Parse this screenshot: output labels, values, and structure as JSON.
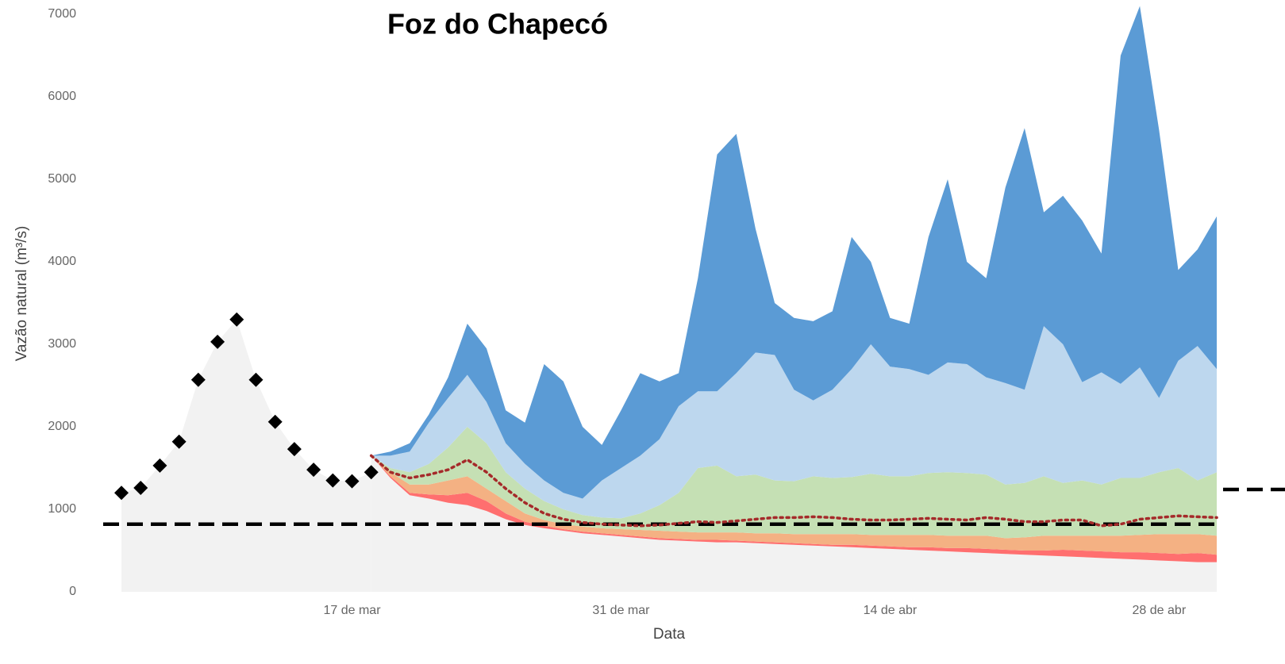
{
  "chart_data": {
    "type": "area",
    "title": "Foz do Chapecó",
    "x_label": "Data",
    "y_label": "Vazão natural (m³/s)",
    "categories": [
      null,
      null,
      null,
      null,
      null,
      null,
      null,
      null,
      null,
      null,
      null,
      null,
      "17 de mar",
      null,
      null,
      null,
      null,
      null,
      null,
      null,
      null,
      null,
      null,
      null,
      null,
      null,
      "31 de mar",
      null,
      null,
      null,
      null,
      null,
      null,
      null,
      null,
      null,
      null,
      null,
      null,
      null,
      "14 de abr",
      null,
      null,
      null,
      null,
      null,
      null,
      null,
      null,
      null,
      null,
      null,
      null,
      null,
      "28 de abr",
      null,
      null,
      null
    ],
    "ylim": [
      0,
      7000
    ],
    "yticks": [
      0,
      1000,
      2000,
      3000,
      4000,
      5000,
      6000,
      7000
    ],
    "reference_lines": [
      820,
      1240
    ],
    "reference_color": "#000000",
    "series": [
      {
        "style": "markers",
        "color": "#000000",
        "fill": "#f2f2f2",
        "values": [
          1200,
          1260,
          1530,
          1820,
          2570,
          3030,
          3300,
          2570,
          2060,
          1730,
          1480,
          1350,
          1340,
          1450,
          null,
          null,
          null,
          null,
          null,
          null,
          null,
          null,
          null,
          null,
          null,
          null,
          null,
          null,
          null,
          null,
          null,
          null,
          null,
          null,
          null,
          null,
          null,
          null,
          null,
          null,
          null,
          null,
          null,
          null,
          null,
          null,
          null,
          null,
          null,
          null,
          null,
          null,
          null,
          null,
          null,
          null,
          null,
          null
        ]
      },
      {
        "style": "band",
        "color": "#f2f2f2",
        "values": [
          null,
          null,
          null,
          null,
          null,
          null,
          null,
          null,
          null,
          null,
          null,
          null,
          null,
          1650,
          1380,
          1170,
          1130,
          1080,
          1050,
          980,
          880,
          810,
          770,
          740,
          710,
          690,
          670,
          650,
          630,
          620,
          610,
          600,
          600,
          590,
          580,
          570,
          560,
          550,
          540,
          530,
          520,
          510,
          500,
          490,
          480,
          470,
          460,
          450,
          440,
          430,
          420,
          410,
          400,
          390,
          380,
          370,
          360,
          360
        ]
      },
      {
        "style": "band",
        "color": "#ff6f6f",
        "values": [
          null,
          null,
          null,
          null,
          null,
          null,
          null,
          null,
          null,
          null,
          null,
          null,
          null,
          1650,
          1400,
          1200,
          1180,
          1170,
          1200,
          1100,
          950,
          850,
          800,
          760,
          730,
          710,
          690,
          670,
          650,
          640,
          630,
          630,
          620,
          610,
          600,
          590,
          580,
          570,
          570,
          560,
          550,
          540,
          540,
          530,
          530,
          520,
          510,
          500,
          500,
          510,
          500,
          490,
          480,
          480,
          470,
          460,
          470,
          450
        ]
      },
      {
        "style": "band",
        "color": "#f4b183",
        "values": [
          null,
          null,
          null,
          null,
          null,
          null,
          null,
          null,
          null,
          null,
          null,
          null,
          null,
          1650,
          1450,
          1300,
          1300,
          1350,
          1400,
          1250,
          1100,
          950,
          870,
          820,
          790,
          770,
          760,
          750,
          740,
          730,
          720,
          720,
          720,
          710,
          710,
          700,
          700,
          700,
          700,
          690,
          690,
          690,
          690,
          680,
          680,
          680,
          650,
          660,
          680,
          680,
          680,
          680,
          680,
          690,
          700,
          700,
          700,
          680
        ]
      },
      {
        "style": "band",
        "color": "#c5e0b4",
        "values": [
          null,
          null,
          null,
          null,
          null,
          null,
          null,
          null,
          null,
          null,
          null,
          null,
          null,
          1650,
          1500,
          1450,
          1550,
          1750,
          2000,
          1800,
          1450,
          1250,
          1100,
          1000,
          930,
          900,
          890,
          950,
          1050,
          1200,
          1500,
          1530,
          1400,
          1420,
          1350,
          1340,
          1400,
          1380,
          1390,
          1430,
          1400,
          1400,
          1440,
          1450,
          1440,
          1420,
          1300,
          1320,
          1400,
          1320,
          1350,
          1300,
          1380,
          1380,
          1450,
          1500,
          1350,
          1450
        ]
      },
      {
        "style": "band",
        "color": "#bdd7ee",
        "values": [
          null,
          null,
          null,
          null,
          null,
          null,
          null,
          null,
          null,
          null,
          null,
          null,
          null,
          1650,
          1650,
          1700,
          2050,
          2350,
          2630,
          2300,
          1800,
          1550,
          1350,
          1200,
          1130,
          1350,
          1500,
          1650,
          1850,
          2250,
          2430,
          2430,
          2650,
          2900,
          2870,
          2450,
          2320,
          2450,
          2700,
          3000,
          2730,
          2700,
          2630,
          2780,
          2760,
          2600,
          2530,
          2450,
          3220,
          3000,
          2540,
          2660,
          2520,
          2720,
          2350,
          2800,
          2980,
          2700
        ]
      },
      {
        "style": "band",
        "color": "#5b9bd5",
        "values": [
          null,
          null,
          null,
          null,
          null,
          null,
          null,
          null,
          null,
          null,
          null,
          null,
          null,
          1650,
          1700,
          1800,
          2150,
          2600,
          3250,
          2950,
          2200,
          2050,
          2760,
          2550,
          2000,
          1780,
          2200,
          2650,
          2550,
          2650,
          3800,
          5300,
          5550,
          4400,
          3500,
          3320,
          3280,
          3400,
          4300,
          4000,
          3320,
          3250,
          4300,
          5000,
          4000,
          3800,
          4900,
          5620,
          4600,
          4800,
          4500,
          4100,
          6500,
          7100,
          5600,
          3900,
          4150,
          4550
        ]
      },
      {
        "style": "dotted",
        "color": "#a52a2a",
        "values": [
          null,
          null,
          null,
          null,
          null,
          null,
          null,
          null,
          null,
          null,
          null,
          null,
          null,
          1650,
          1450,
          1380,
          1420,
          1480,
          1600,
          1450,
          1250,
          1080,
          950,
          880,
          840,
          820,
          810,
          800,
          810,
          830,
          850,
          840,
          860,
          880,
          900,
          900,
          910,
          900,
          880,
          870,
          870,
          880,
          890,
          880,
          870,
          900,
          880,
          850,
          850,
          870,
          870,
          800,
          820,
          880,
          900,
          920,
          910,
          900
        ]
      }
    ]
  }
}
